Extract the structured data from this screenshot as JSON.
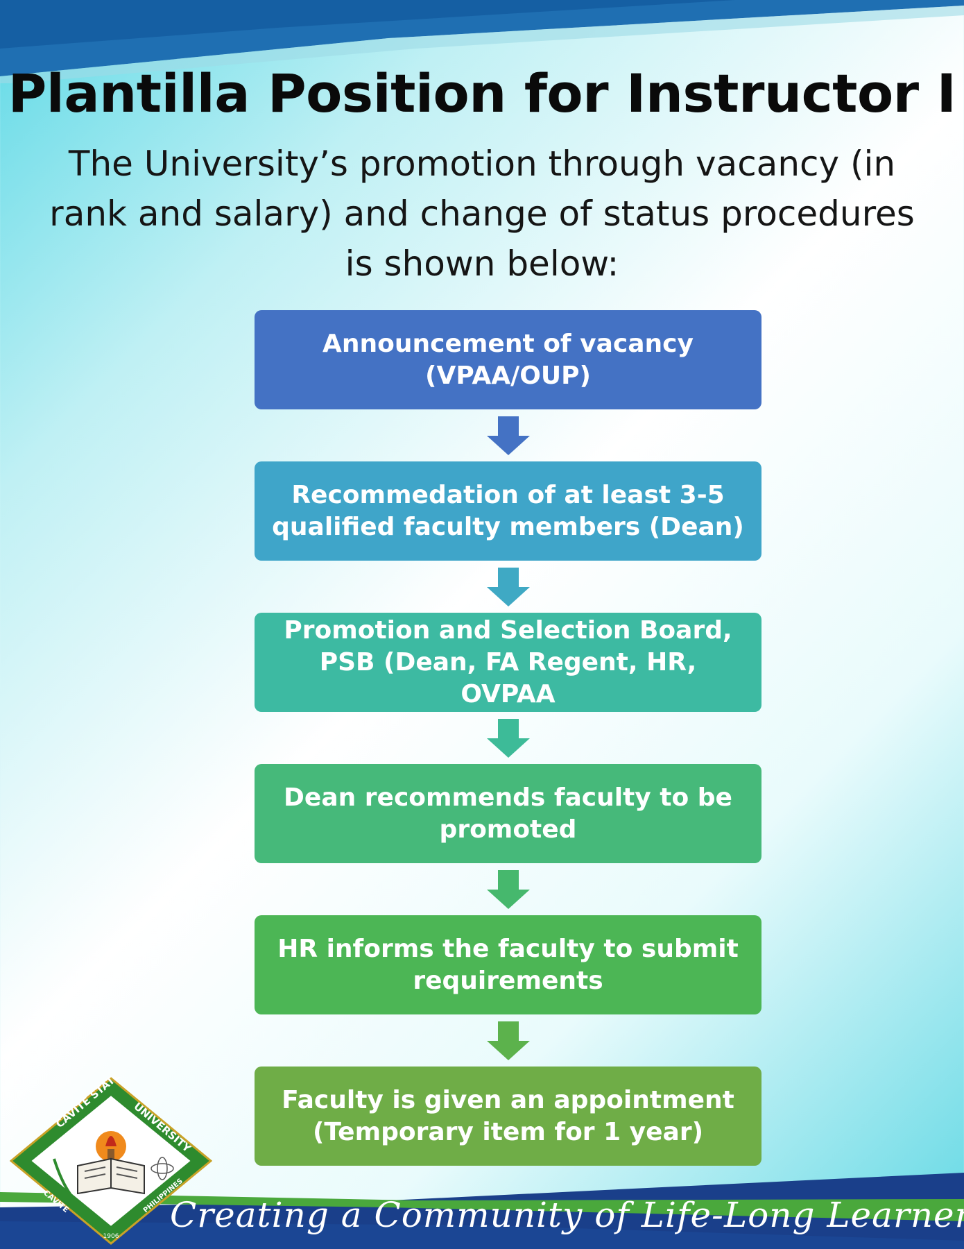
{
  "header": {
    "title": "Plantilla Position for Instructor I",
    "subtitle": "The University’s promotion through vacancy (in rank and salary) and change of status procedures is shown below:"
  },
  "flowchart": {
    "steps": [
      {
        "label": "Announcement of vacancy\n(VPAA/OUP)",
        "color": "#4472c4"
      },
      {
        "label": "Recommedation of at least 3-5\nqualified faculty  members (Dean)",
        "color": "#3fa5c9"
      },
      {
        "label": "Promotion and Selection Board,\nPSB (Dean, FA Regent, HR, OVPAA",
        "color": "#3dbaa2"
      },
      {
        "label": "Dean recommends faculty to be\npromoted",
        "color": "#46b97a"
      },
      {
        "label": "HR informs the faculty to submit\nrequirements",
        "color": "#4cb655"
      },
      {
        "label": "Faculty is given an appointment\n(Temporary item for 1 year)",
        "color": "#6fad47"
      }
    ],
    "arrow_colors": [
      "#4472c4",
      "#3fa9c4",
      "#3dbb98",
      "#46b86d",
      "#5cb24c"
    ],
    "arrow_icon": "down-arrow-icon"
  },
  "footer": {
    "tagline": "Creating a Community of Life-Long Learners",
    "logo": {
      "arc_top_left": "CAVITE STATE",
      "arc_top_right": "UNIVERSITY",
      "arc_bottom_left": "CAVITE",
      "arc_bottom_right": "PHILIPPINES",
      "year": "1906"
    }
  },
  "colors": {
    "top_band_dark": "#1d6fb3",
    "top_band_light": "#3a8fc9",
    "bottom_band_blue": "#1a3f8a",
    "bottom_band_green": "#4aa83c",
    "logo_green": "#2e8b2e"
  }
}
